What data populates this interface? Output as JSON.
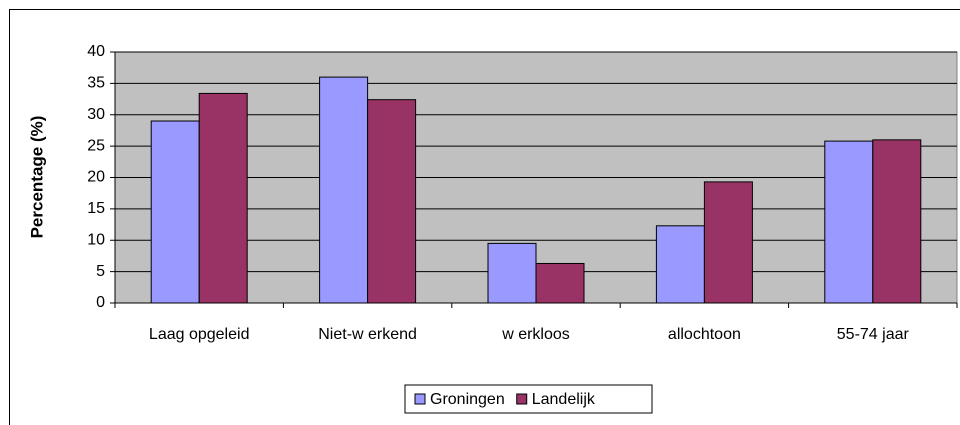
{
  "chart_data": {
    "type": "bar",
    "y_label": "Percentage (%)",
    "categories": [
      "Laag opgeleid",
      "Niet-w erkend",
      "w erkloos",
      "allochtoon",
      "55-74 jaar"
    ],
    "series": [
      {
        "name": "Groningen",
        "color": "#9999ff",
        "values": [
          29.0,
          36.0,
          9.5,
          12.3,
          25.8
        ]
      },
      {
        "name": "Landelijk",
        "color": "#993366",
        "values": [
          33.4,
          32.4,
          6.3,
          19.3,
          26.0
        ]
      }
    ],
    "ylim": [
      0,
      40
    ],
    "yticks": [
      0,
      5,
      10,
      15,
      20,
      25,
      30,
      35,
      40
    ],
    "grid": true,
    "plot_background": "#c0c0c0",
    "legend": "bottom"
  }
}
